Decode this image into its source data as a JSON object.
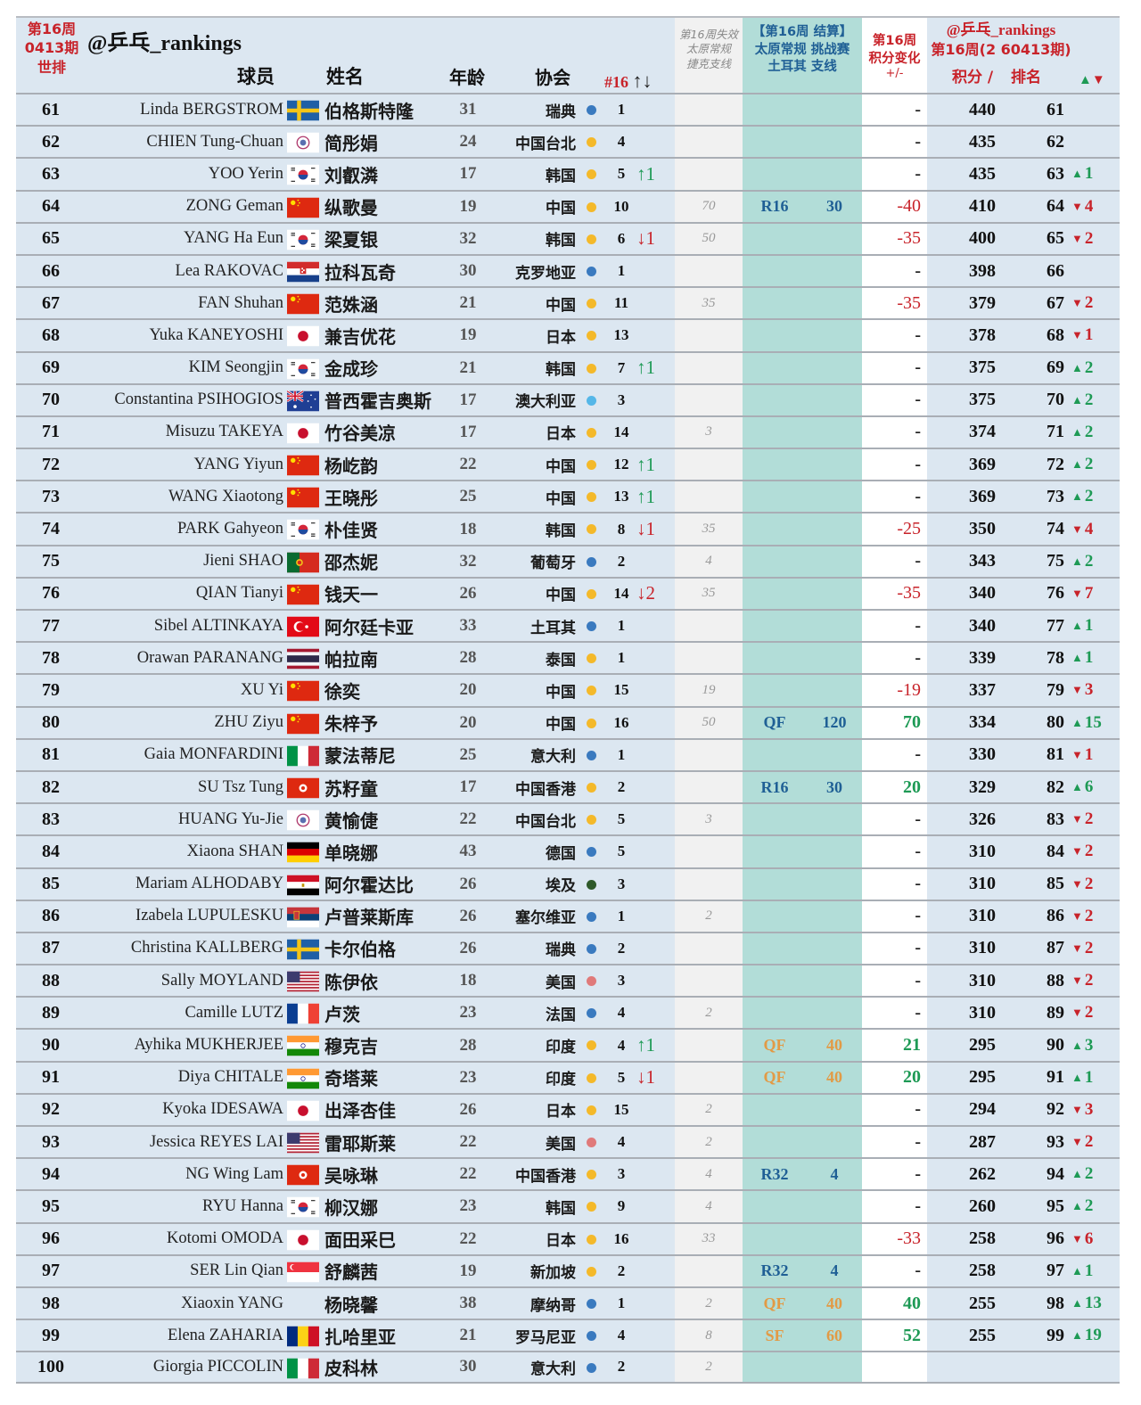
{
  "header": {
    "week_label": "第16周",
    "issue_label": "0413期",
    "world_rank_label": "世排",
    "handle": "@乒乓_rankings",
    "col_player": "球员",
    "col_name": "姓名",
    "col_age": "年龄",
    "col_assoc": "协会",
    "col_nat_rank": "#16",
    "col_nat_rank_arrows": "↑↓",
    "col_expired": [
      "第16周失效",
      "太原常规",
      "捷克支线"
    ],
    "col_settlement": [
      "【第16周 结算】",
      "太原常规 挑战赛",
      "土耳其 支线"
    ],
    "col_change": [
      "第16周",
      "积分变化",
      "+/-"
    ],
    "col_new": [
      "@乒乓_rankings",
      "第16周(2 60413期)"
    ],
    "col_points": "积分 /",
    "col_rank": "排名",
    "col_rank_change": "▲▼"
  },
  "colors": {
    "header_red": "#c8232a",
    "row_bg": "#dce7f1",
    "expired_bg": "#f1f1f1",
    "settlement_bg": "#b2ddd8",
    "change_bg": "#ffffff",
    "up_green": "#1e9a55",
    "down_red": "#c8232a",
    "round_blue": "#1f5f95",
    "round_orange": "#e29a45",
    "dot_blue": "#3a7abf",
    "dot_yellow": "#f4b92a",
    "dot_lightblue": "#55b7e8",
    "dot_darkgreen": "#2f5a2a",
    "dot_pink": "#e07a7a"
  },
  "rows": [
    {
      "rank": "61",
      "en": "Linda BERGSTROM",
      "flag": "SWE",
      "zh": "伯格斯特隆",
      "age": "31",
      "assoc": "瑞典",
      "dot": "blue",
      "nat": "1",
      "natchg": "",
      "exp": "",
      "round": "",
      "rpts": "",
      "rcolor": "",
      "chg": "-",
      "pts": "440",
      "nrank": "61",
      "rchg": ""
    },
    {
      "rank": "62",
      "en": "CHIEN Tung-Chuan",
      "flag": "TPE",
      "zh": "简彤娟",
      "age": "24",
      "assoc": "中国台北",
      "dot": "yellow",
      "nat": "4",
      "natchg": "",
      "exp": "",
      "round": "",
      "rpts": "",
      "rcolor": "",
      "chg": "-",
      "pts": "435",
      "nrank": "62",
      "rchg": ""
    },
    {
      "rank": "63",
      "en": "YOO Yerin",
      "flag": "KOR",
      "zh": "刘叡潾",
      "age": "17",
      "assoc": "韩国",
      "dot": "yellow",
      "nat": "5",
      "natchg": "↑1",
      "exp": "",
      "round": "",
      "rpts": "",
      "rcolor": "",
      "chg": "-",
      "pts": "435",
      "nrank": "63",
      "rchg": "▲1"
    },
    {
      "rank": "64",
      "en": "ZONG Geman",
      "flag": "CHN",
      "zh": "纵歌曼",
      "age": "19",
      "assoc": "中国",
      "dot": "yellow",
      "nat": "10",
      "natchg": "",
      "exp": "70",
      "round": "R16",
      "rpts": "30",
      "rcolor": "blue",
      "chg": "-40",
      "pts": "410",
      "nrank": "64",
      "rchg": "▼4"
    },
    {
      "rank": "65",
      "en": "YANG Ha Eun",
      "flag": "KOR",
      "zh": "梁夏银",
      "age": "32",
      "assoc": "韩国",
      "dot": "yellow",
      "nat": "6",
      "natchg": "↓1",
      "exp": "50",
      "round": "",
      "rpts": "",
      "rcolor": "",
      "chg": "-35",
      "pts": "400",
      "nrank": "65",
      "rchg": "▼2"
    },
    {
      "rank": "66",
      "en": "Lea RAKOVAC",
      "flag": "CRO",
      "zh": "拉科瓦奇",
      "age": "30",
      "assoc": "克罗地亚",
      "dot": "blue",
      "nat": "1",
      "natchg": "",
      "exp": "",
      "round": "",
      "rpts": "",
      "rcolor": "",
      "chg": "-",
      "pts": "398",
      "nrank": "66",
      "rchg": ""
    },
    {
      "rank": "67",
      "en": "FAN Shuhan",
      "flag": "CHN",
      "zh": "范姝涵",
      "age": "21",
      "assoc": "中国",
      "dot": "yellow",
      "nat": "11",
      "natchg": "",
      "exp": "35",
      "round": "",
      "rpts": "",
      "rcolor": "",
      "chg": "-35",
      "pts": "379",
      "nrank": "67",
      "rchg": "▼2"
    },
    {
      "rank": "68",
      "en": "Yuka KANEYOSHI",
      "flag": "JPN",
      "zh": "兼吉优花",
      "age": "19",
      "assoc": "日本",
      "dot": "yellow",
      "nat": "13",
      "natchg": "",
      "exp": "",
      "round": "",
      "rpts": "",
      "rcolor": "",
      "chg": "-",
      "pts": "378",
      "nrank": "68",
      "rchg": "▼1"
    },
    {
      "rank": "69",
      "en": "KIM Seongjin",
      "flag": "KOR",
      "zh": "金成珍",
      "age": "21",
      "assoc": "韩国",
      "dot": "yellow",
      "nat": "7",
      "natchg": "↑1",
      "exp": "",
      "round": "",
      "rpts": "",
      "rcolor": "",
      "chg": "-",
      "pts": "375",
      "nrank": "69",
      "rchg": "▲2"
    },
    {
      "rank": "70",
      "en": "Constantina PSIHOGIOS",
      "flag": "AUS",
      "zh": "普西霍吉奥斯",
      "age": "17",
      "assoc": "澳大利亚",
      "dot": "lightblue",
      "nat": "3",
      "natchg": "",
      "exp": "",
      "round": "",
      "rpts": "",
      "rcolor": "",
      "chg": "-",
      "pts": "375",
      "nrank": "70",
      "rchg": "▲2"
    },
    {
      "rank": "71",
      "en": "Misuzu TAKEYA",
      "flag": "JPN",
      "zh": "竹谷美凉",
      "age": "17",
      "assoc": "日本",
      "dot": "yellow",
      "nat": "14",
      "natchg": "",
      "exp": "3",
      "round": "",
      "rpts": "",
      "rcolor": "",
      "chg": "-",
      "pts": "374",
      "nrank": "71",
      "rchg": "▲2"
    },
    {
      "rank": "72",
      "en": "YANG Yiyun",
      "flag": "CHN",
      "zh": "杨屹韵",
      "age": "22",
      "assoc": "中国",
      "dot": "yellow",
      "nat": "12",
      "natchg": "↑1",
      "exp": "",
      "round": "",
      "rpts": "",
      "rcolor": "",
      "chg": "-",
      "pts": "369",
      "nrank": "72",
      "rchg": "▲2"
    },
    {
      "rank": "73",
      "en": "WANG Xiaotong",
      "flag": "CHN",
      "zh": "王晓彤",
      "age": "25",
      "assoc": "中国",
      "dot": "yellow",
      "nat": "13",
      "natchg": "↑1",
      "exp": "",
      "round": "",
      "rpts": "",
      "rcolor": "",
      "chg": "-",
      "pts": "369",
      "nrank": "73",
      "rchg": "▲2"
    },
    {
      "rank": "74",
      "en": "PARK Gahyeon",
      "flag": "KOR",
      "zh": "朴佳贤",
      "age": "18",
      "assoc": "韩国",
      "dot": "yellow",
      "nat": "8",
      "natchg": "↓1",
      "exp": "35",
      "round": "",
      "rpts": "",
      "rcolor": "",
      "chg": "-25",
      "pts": "350",
      "nrank": "74",
      "rchg": "▼4"
    },
    {
      "rank": "75",
      "en": "Jieni SHAO",
      "flag": "POR",
      "zh": "邵杰妮",
      "age": "32",
      "assoc": "葡萄牙",
      "dot": "blue",
      "nat": "2",
      "natchg": "",
      "exp": "4",
      "round": "",
      "rpts": "",
      "rcolor": "",
      "chg": "-",
      "pts": "343",
      "nrank": "75",
      "rchg": "▲2"
    },
    {
      "rank": "76",
      "en": "QIAN Tianyi",
      "flag": "CHN",
      "zh": "钱天一",
      "age": "26",
      "assoc": "中国",
      "dot": "yellow",
      "nat": "14",
      "natchg": "↓2",
      "exp": "35",
      "round": "",
      "rpts": "",
      "rcolor": "",
      "chg": "-35",
      "pts": "340",
      "nrank": "76",
      "rchg": "▼7"
    },
    {
      "rank": "77",
      "en": "Sibel ALTINKAYA",
      "flag": "TUR",
      "zh": "阿尔廷卡亚",
      "age": "33",
      "assoc": "土耳其",
      "dot": "blue",
      "nat": "1",
      "natchg": "",
      "exp": "",
      "round": "",
      "rpts": "",
      "rcolor": "",
      "chg": "-",
      "pts": "340",
      "nrank": "77",
      "rchg": "▲1"
    },
    {
      "rank": "78",
      "en": "Orawan PARANANG",
      "flag": "THA",
      "zh": "帕拉南",
      "age": "28",
      "assoc": "泰国",
      "dot": "yellow",
      "nat": "1",
      "natchg": "",
      "exp": "",
      "round": "",
      "rpts": "",
      "rcolor": "",
      "chg": "-",
      "pts": "339",
      "nrank": "78",
      "rchg": "▲1"
    },
    {
      "rank": "79",
      "en": "XU Yi",
      "flag": "CHN",
      "zh": "徐奕",
      "age": "20",
      "assoc": "中国",
      "dot": "yellow",
      "nat": "15",
      "natchg": "",
      "exp": "19",
      "round": "",
      "rpts": "",
      "rcolor": "",
      "chg": "-19",
      "pts": "337",
      "nrank": "79",
      "rchg": "▼3"
    },
    {
      "rank": "80",
      "en": "ZHU Ziyu",
      "flag": "CHN",
      "zh": "朱梓予",
      "age": "20",
      "assoc": "中国",
      "dot": "yellow",
      "nat": "16",
      "natchg": "",
      "exp": "50",
      "round": "QF",
      "rpts": "120",
      "rcolor": "blue",
      "chg": "70",
      "pts": "334",
      "nrank": "80",
      "rchg": "▲15"
    },
    {
      "rank": "81",
      "en": "Gaia MONFARDINI",
      "flag": "ITA",
      "zh": "蒙法蒂尼",
      "age": "25",
      "assoc": "意大利",
      "dot": "blue",
      "nat": "1",
      "natchg": "",
      "exp": "",
      "round": "",
      "rpts": "",
      "rcolor": "",
      "chg": "-",
      "pts": "330",
      "nrank": "81",
      "rchg": "▼1"
    },
    {
      "rank": "82",
      "en": "SU Tsz Tung",
      "flag": "HKG",
      "zh": "苏籽童",
      "age": "17",
      "assoc": "中国香港",
      "dot": "yellow",
      "nat": "2",
      "natchg": "",
      "exp": "",
      "round": "R16",
      "rpts": "30",
      "rcolor": "blue",
      "chg": "20",
      "pts": "329",
      "nrank": "82",
      "rchg": "▲6"
    },
    {
      "rank": "83",
      "en": "HUANG Yu-Jie",
      "flag": "TPE",
      "zh": "黄愉倢",
      "age": "22",
      "assoc": "中国台北",
      "dot": "yellow",
      "nat": "5",
      "natchg": "",
      "exp": "3",
      "round": "",
      "rpts": "",
      "rcolor": "",
      "chg": "-",
      "pts": "326",
      "nrank": "83",
      "rchg": "▼2"
    },
    {
      "rank": "84",
      "en": "Xiaona SHAN",
      "flag": "GER",
      "zh": "单晓娜",
      "age": "43",
      "assoc": "德国",
      "dot": "blue",
      "nat": "5",
      "natchg": "",
      "exp": "",
      "round": "",
      "rpts": "",
      "rcolor": "",
      "chg": "-",
      "pts": "310",
      "nrank": "84",
      "rchg": "▼2"
    },
    {
      "rank": "85",
      "en": "Mariam ALHODABY",
      "flag": "EGY",
      "zh": "阿尔霍达比",
      "age": "26",
      "assoc": "埃及",
      "dot": "darkgreen",
      "nat": "3",
      "natchg": "",
      "exp": "",
      "round": "",
      "rpts": "",
      "rcolor": "",
      "chg": "-",
      "pts": "310",
      "nrank": "85",
      "rchg": "▼2"
    },
    {
      "rank": "86",
      "en": "Izabela LUPULESKU",
      "flag": "SRB",
      "zh": "卢普莱斯库",
      "age": "26",
      "assoc": "塞尔维亚",
      "dot": "blue",
      "nat": "1",
      "natchg": "",
      "exp": "2",
      "round": "",
      "rpts": "",
      "rcolor": "",
      "chg": "-",
      "pts": "310",
      "nrank": "86",
      "rchg": "▼2"
    },
    {
      "rank": "87",
      "en": "Christina KALLBERG",
      "flag": "SWE",
      "zh": "卡尔伯格",
      "age": "26",
      "assoc": "瑞典",
      "dot": "blue",
      "nat": "2",
      "natchg": "",
      "exp": "",
      "round": "",
      "rpts": "",
      "rcolor": "",
      "chg": "-",
      "pts": "310",
      "nrank": "87",
      "rchg": "▼2"
    },
    {
      "rank": "88",
      "en": "Sally MOYLAND",
      "flag": "USA",
      "zh": "陈伊依",
      "age": "18",
      "assoc": "美国",
      "dot": "pink",
      "nat": "3",
      "natchg": "",
      "exp": "",
      "round": "",
      "rpts": "",
      "rcolor": "",
      "chg": "-",
      "pts": "310",
      "nrank": "88",
      "rchg": "▼2"
    },
    {
      "rank": "89",
      "en": "Camille LUTZ",
      "flag": "FRA",
      "zh": "卢茨",
      "age": "23",
      "assoc": "法国",
      "dot": "blue",
      "nat": "4",
      "natchg": "",
      "exp": "2",
      "round": "",
      "rpts": "",
      "rcolor": "",
      "chg": "-",
      "pts": "310",
      "nrank": "89",
      "rchg": "▼2"
    },
    {
      "rank": "90",
      "en": "Ayhika MUKHERJEE",
      "flag": "IND",
      "zh": "穆克吉",
      "age": "28",
      "assoc": "印度",
      "dot": "yellow",
      "nat": "4",
      "natchg": "↑1",
      "exp": "",
      "round": "QF",
      "rpts": "40",
      "rcolor": "orange",
      "chg": "21",
      "pts": "295",
      "nrank": "90",
      "rchg": "▲3"
    },
    {
      "rank": "91",
      "en": "Diya CHITALE",
      "flag": "IND",
      "zh": "奇塔莱",
      "age": "23",
      "assoc": "印度",
      "dot": "yellow",
      "nat": "5",
      "natchg": "↓1",
      "exp": "",
      "round": "QF",
      "rpts": "40",
      "rcolor": "orange",
      "chg": "20",
      "pts": "295",
      "nrank": "91",
      "rchg": "▲1"
    },
    {
      "rank": "92",
      "en": "Kyoka IDESAWA",
      "flag": "JPN",
      "zh": "出泽杏佳",
      "age": "26",
      "assoc": "日本",
      "dot": "yellow",
      "nat": "15",
      "natchg": "",
      "exp": "2",
      "round": "",
      "rpts": "",
      "rcolor": "",
      "chg": "-",
      "pts": "294",
      "nrank": "92",
      "rchg": "▼3"
    },
    {
      "rank": "93",
      "en": "Jessica REYES LAI",
      "flag": "USA",
      "zh": "雷耶斯莱",
      "age": "22",
      "assoc": "美国",
      "dot": "pink",
      "nat": "4",
      "natchg": "",
      "exp": "2",
      "round": "",
      "rpts": "",
      "rcolor": "",
      "chg": "-",
      "pts": "287",
      "nrank": "93",
      "rchg": "▼2"
    },
    {
      "rank": "94",
      "en": "NG Wing Lam",
      "flag": "HKG",
      "zh": "吴咏琳",
      "age": "22",
      "assoc": "中国香港",
      "dot": "yellow",
      "nat": "3",
      "natchg": "",
      "exp": "4",
      "round": "R32",
      "rpts": "4",
      "rcolor": "blue",
      "chg": "-",
      "pts": "262",
      "nrank": "94",
      "rchg": "▲2"
    },
    {
      "rank": "95",
      "en": "RYU Hanna",
      "flag": "KOR",
      "zh": "柳汉娜",
      "age": "23",
      "assoc": "韩国",
      "dot": "yellow",
      "nat": "9",
      "natchg": "",
      "exp": "4",
      "round": "",
      "rpts": "",
      "rcolor": "",
      "chg": "-",
      "pts": "260",
      "nrank": "95",
      "rchg": "▲2"
    },
    {
      "rank": "96",
      "en": "Kotomi OMODA",
      "flag": "JPN",
      "zh": "面田采巳",
      "age": "22",
      "assoc": "日本",
      "dot": "yellow",
      "nat": "16",
      "natchg": "",
      "exp": "33",
      "round": "",
      "rpts": "",
      "rcolor": "",
      "chg": "-33",
      "pts": "258",
      "nrank": "96",
      "rchg": "▼6"
    },
    {
      "rank": "97",
      "en": "SER Lin Qian",
      "flag": "SGP",
      "zh": "舒麟茜",
      "age": "19",
      "assoc": "新加坡",
      "dot": "yellow",
      "nat": "2",
      "natchg": "",
      "exp": "",
      "round": "R32",
      "rpts": "4",
      "rcolor": "blue",
      "chg": "-",
      "pts": "258",
      "nrank": "97",
      "rchg": "▲1"
    },
    {
      "rank": "98",
      "en": "Xiaoxin YANG",
      "flag": "",
      "zh": "杨晓馨",
      "age": "38",
      "assoc": "摩纳哥",
      "dot": "blue",
      "nat": "1",
      "natchg": "",
      "exp": "2",
      "round": "QF",
      "rpts": "40",
      "rcolor": "orange",
      "chg": "40",
      "pts": "255",
      "nrank": "98",
      "rchg": "▲13"
    },
    {
      "rank": "99",
      "en": "Elena ZAHARIA",
      "flag": "ROU",
      "zh": "扎哈里亚",
      "age": "21",
      "assoc": "罗马尼亚",
      "dot": "blue",
      "nat": "4",
      "natchg": "",
      "exp": "8",
      "round": "SF",
      "rpts": "60",
      "rcolor": "orange",
      "chg": "52",
      "pts": "255",
      "nrank": "99",
      "rchg": "▲19"
    },
    {
      "rank": "100",
      "en": "Giorgia PICCOLIN",
      "flag": "ITA",
      "zh": "皮科林",
      "age": "30",
      "assoc": "意大利",
      "dot": "blue",
      "nat": "2",
      "natchg": "",
      "exp": "2",
      "round": "",
      "rpts": "",
      "rcolor": "",
      "chg": "",
      "pts": "",
      "nrank": "",
      "rchg": ""
    }
  ]
}
